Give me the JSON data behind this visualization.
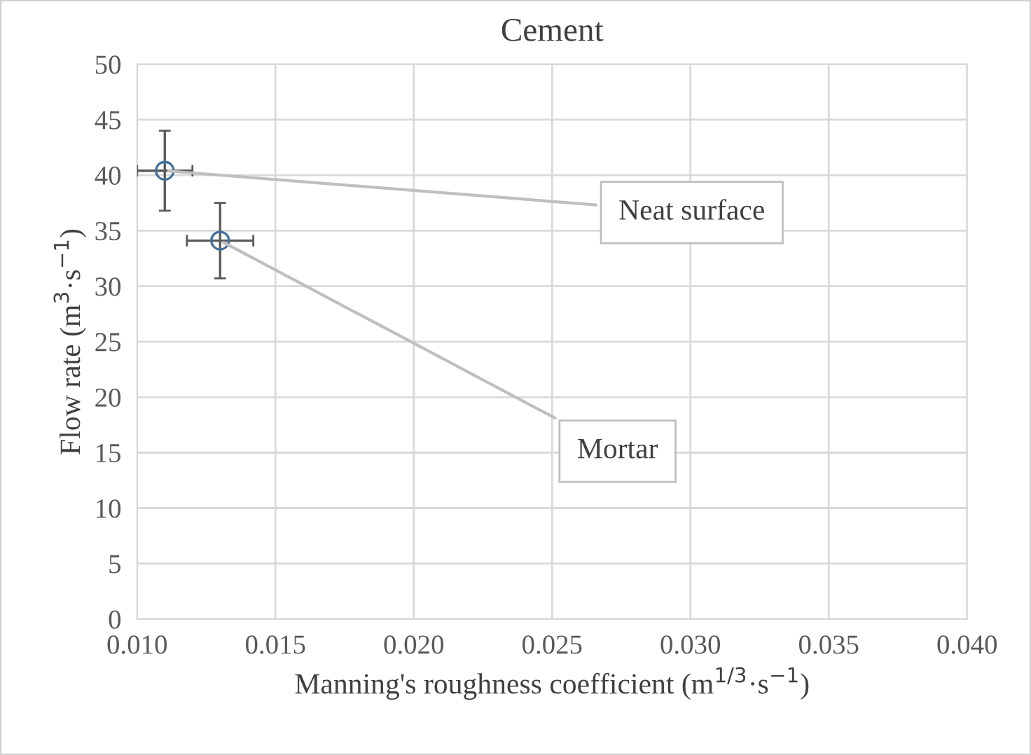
{
  "chart_data": {
    "type": "scatter",
    "title": "Cement",
    "xlabel": "Manning's roughness coefficient (m$^{1/3}$·s$^{−1}$)",
    "ylabel": "Flow rate (m$^{3}$·s$^{−1}$)",
    "x": [
      0.011,
      0.013
    ],
    "series": [
      {
        "color": "#41719c",
        "values": [
          40.4,
          34.1
        ],
        "errors": [
          3.6,
          3.4
        ],
        "xerrors": [
          0.001,
          0.0012
        ]
      }
    ],
    "annotations": [
      {
        "text": "Neat surface",
        "x": 0.011,
        "y": 40.4
      },
      {
        "text": "Mortar",
        "x": 0.013,
        "y": 34.1
      }
    ],
    "xlim": [
      0.01,
      0.04
    ],
    "xticks": [
      {
        "value": 0.01,
        "label": "0.010"
      },
      {
        "value": 0.015,
        "label": "0.015"
      },
      {
        "value": 0.02,
        "label": "0.020"
      },
      {
        "value": 0.025,
        "label": "0.025"
      },
      {
        "value": 0.03,
        "label": "0.030"
      },
      {
        "value": 0.035,
        "label": "0.035"
      },
      {
        "value": 0.04,
        "label": "0.040"
      }
    ],
    "ylim": [
      0,
      50
    ],
    "yticks": [
      0,
      5,
      10,
      15,
      20,
      25,
      30,
      35,
      40,
      45,
      50
    ],
    "grid": true,
    "marker": "circle",
    "legend": false
  }
}
